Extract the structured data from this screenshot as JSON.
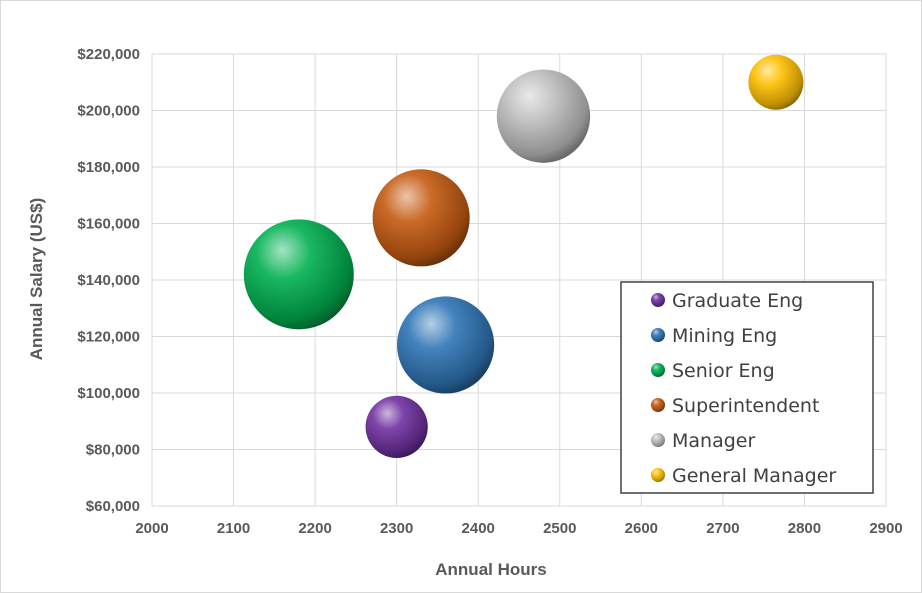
{
  "chart_data": {
    "type": "bubble",
    "xlabel": "Annual Hours",
    "ylabel": "Annual Salary (US$)",
    "xlim": [
      2000,
      2900
    ],
    "ylim": [
      60000,
      220000
    ],
    "xticks": [
      "2000",
      "2100",
      "2200",
      "2300",
      "2400",
      "2500",
      "2600",
      "2700",
      "2800",
      "2900"
    ],
    "yticks": [
      "$60,000",
      "$80,000",
      "$100,000",
      "$120,000",
      "$140,000",
      "$160,000",
      "$180,000",
      "$200,000",
      "$220,000"
    ],
    "grid": true,
    "legend_position": "bottom-right",
    "series": [
      {
        "name": "Graduate Eng",
        "x": 2300,
        "y": 88000,
        "size": 0.32,
        "color": "#7030a0"
      },
      {
        "name": "Mining Eng",
        "x": 2360,
        "y": 117000,
        "size": 0.78,
        "color": "#2e75b6"
      },
      {
        "name": "Senior Eng",
        "x": 2180,
        "y": 142000,
        "size": 1.0,
        "color": "#00b050"
      },
      {
        "name": "Superintendent",
        "x": 2330,
        "y": 162000,
        "size": 0.78,
        "color": "#c55a11"
      },
      {
        "name": "Manager",
        "x": 2480,
        "y": 198000,
        "size": 0.72,
        "color": "#bfbfbf"
      },
      {
        "name": "General Manager",
        "x": 2765,
        "y": 210000,
        "size": 0.25,
        "color": "#ffc000"
      }
    ]
  }
}
